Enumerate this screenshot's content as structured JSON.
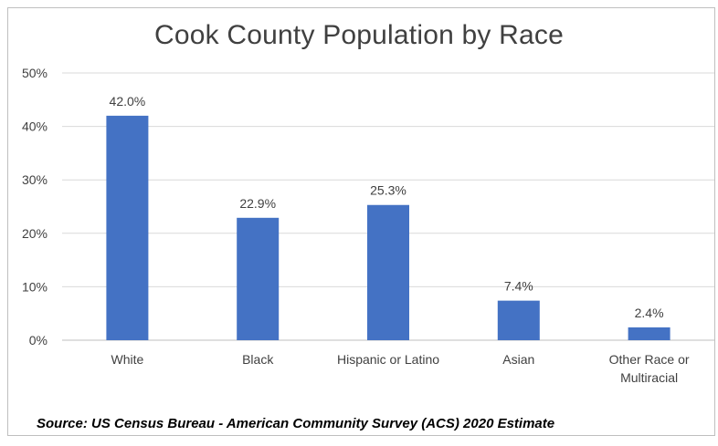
{
  "chart_data": {
    "type": "bar",
    "title": "Cook County Population by Race",
    "categories": [
      "White",
      "Black",
      "Hispanic or Latino",
      "Asian",
      "Other Race or Multiracial"
    ],
    "category_lines": [
      [
        "White"
      ],
      [
        "Black"
      ],
      [
        "Hispanic or Latino"
      ],
      [
        "Asian"
      ],
      [
        "Other Race or",
        "Multiracial"
      ]
    ],
    "values": [
      42.0,
      22.9,
      25.3,
      7.4,
      2.4
    ],
    "value_labels": [
      "42.0%",
      "22.9%",
      "25.3%",
      "7.4%",
      "2.4%"
    ],
    "ylim": [
      0,
      50
    ],
    "yticks": [
      0,
      10,
      20,
      30,
      40,
      50
    ],
    "ytick_labels": [
      "0%",
      "10%",
      "20%",
      "30%",
      "40%",
      "50%"
    ],
    "grid": true,
    "bar_color": "#4472C4",
    "grid_color": "#d9d9d9",
    "text_color": "#404040"
  },
  "source_note": "Source: US Census Bureau - American Community Survey (ACS) 2020 Estimate"
}
